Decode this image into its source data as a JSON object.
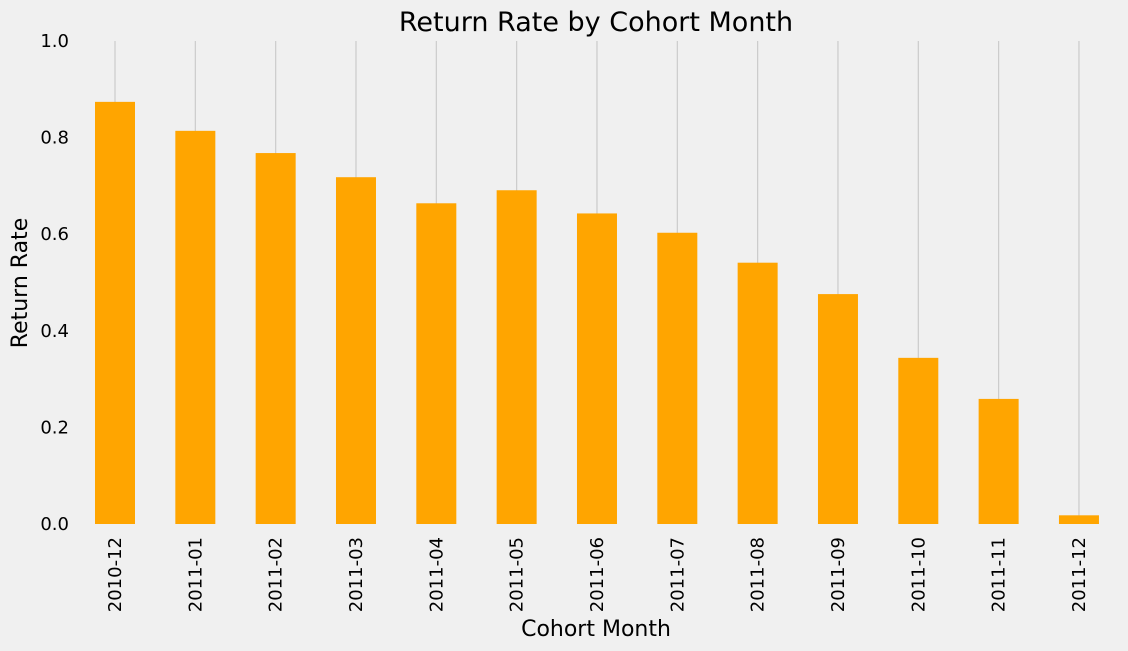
{
  "chart_data": {
    "type": "bar",
    "title": "Return Rate by Cohort Month",
    "xlabel": "Cohort Month",
    "ylabel": "Return Rate",
    "categories": [
      "2010-12",
      "2011-01",
      "2011-02",
      "2011-03",
      "2011-04",
      "2011-05",
      "2011-06",
      "2011-07",
      "2011-08",
      "2011-09",
      "2011-10",
      "2011-11",
      "2011-12"
    ],
    "values": [
      0.874,
      0.814,
      0.768,
      0.718,
      0.664,
      0.691,
      0.643,
      0.603,
      0.541,
      0.476,
      0.344,
      0.259,
      0.018
    ],
    "ylim": [
      0,
      1.0
    ],
    "yticks": [
      "0.0",
      "0.2",
      "0.4",
      "0.6",
      "0.8",
      "1.0"
    ],
    "grid": "vertical",
    "bar_color": "#ffa500",
    "grid_color": "#cbcbcb",
    "background": "#f0f0f0"
  }
}
